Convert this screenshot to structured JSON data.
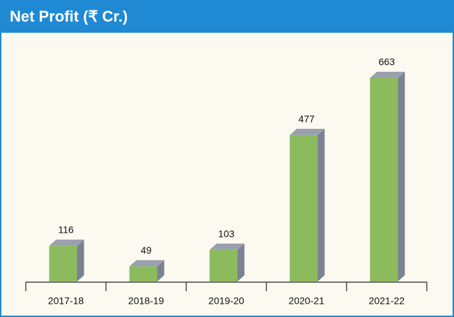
{
  "chart_data": {
    "type": "bar3d",
    "title": "Net Profit (₹ Cr.)",
    "categories": [
      "2017-18",
      "2018-19",
      "2019-20",
      "2020-21",
      "2021-22"
    ],
    "values": [
      116,
      49,
      103,
      477,
      663
    ],
    "color": "#8cbb5e",
    "side_color": "#7b8292",
    "header_color": "#1f8ad3"
  }
}
